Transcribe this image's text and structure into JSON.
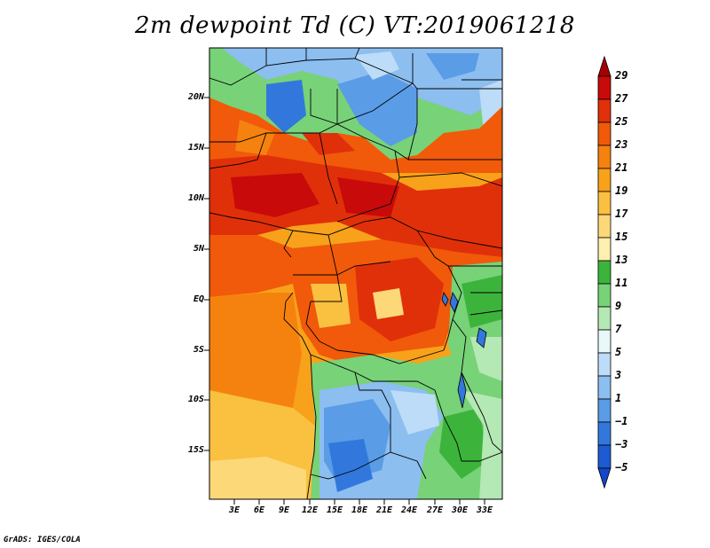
{
  "title": "2m dewpoint Td (C) VT:2019061218",
  "map": {
    "lat_labels": [
      "20N",
      "15N",
      "10N",
      "5N",
      "EQ",
      "5S",
      "10S",
      "15S"
    ],
    "lat_values": [
      20,
      15,
      10,
      5,
      0,
      -5,
      -10,
      -15
    ],
    "lon_labels": [
      "3E",
      "6E",
      "9E",
      "12E",
      "15E",
      "18E",
      "21E",
      "24E",
      "27E",
      "30E",
      "33E"
    ],
    "lon_values": [
      3,
      6,
      9,
      12,
      15,
      18,
      21,
      24,
      27,
      30,
      33
    ],
    "extent": {
      "lon_min": 0,
      "lon_max": 35,
      "lat_min": -20,
      "lat_max": 25
    },
    "variable": "2m dewpoint temperature",
    "units": "C"
  },
  "colorbar": {
    "labels": [
      "29",
      "27",
      "25",
      "23",
      "21",
      "19",
      "17",
      "15",
      "13",
      "11",
      "9",
      "7",
      "5",
      "3",
      "1",
      "−1",
      "−3",
      "−5"
    ],
    "colors": [
      "#a50000",
      "#c80a0a",
      "#e0300a",
      "#f05a0a",
      "#f5820f",
      "#f7a21a",
      "#fac040",
      "#fcd878",
      "#fdefb0",
      "#3cb43c",
      "#78d278",
      "#b4e8b4",
      "#e8f8f8",
      "#bcdcf8",
      "#8cbef0",
      "#5a9ce6",
      "#3278dc",
      "#1e5ad2",
      "#1446c8"
    ]
  },
  "credit": "GrADS: IGES/COLA"
}
